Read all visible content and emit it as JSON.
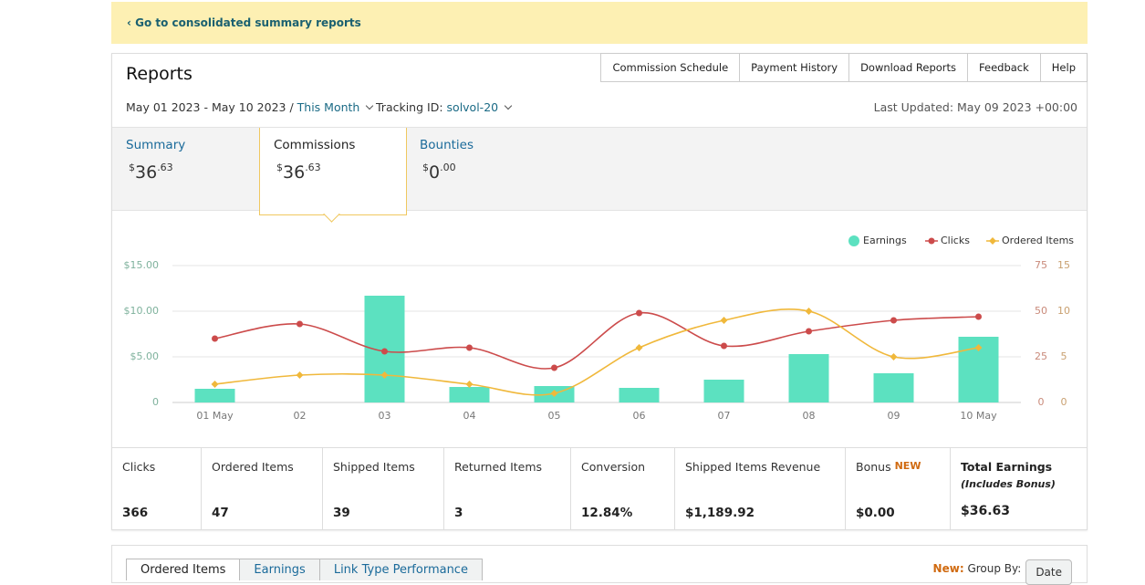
{
  "banner": {
    "link": "‹ Go to consolidated summary reports"
  },
  "header": {
    "title": "Reports",
    "nav": [
      "Commission Schedule",
      "Payment History",
      "Download Reports",
      "Feedback",
      "Help"
    ]
  },
  "filters": {
    "date_range": "May 01 2023 - May 10 2023 /",
    "period": "This Month",
    "tracking_label": "Tracking ID:",
    "tracking_id": "solvol-20",
    "last_updated": "Last Updated: May 09 2023 +00:00"
  },
  "summary_tabs": [
    {
      "label": "Summary",
      "currency": "$",
      "whole": "36",
      "fraction": ".63"
    },
    {
      "label": "Commissions",
      "currency": "$",
      "whole": "36",
      "fraction": ".63"
    },
    {
      "label": "Bounties",
      "currency": "$",
      "whole": "0",
      "fraction": ".00"
    }
  ],
  "chart_data": {
    "type": "combo",
    "categories": [
      "01 May",
      "02",
      "03",
      "04",
      "05",
      "06",
      "07",
      "08",
      "09",
      "10 May"
    ],
    "series": [
      {
        "name": "Earnings",
        "type": "bar",
        "axis": "y",
        "color": "#5ce1c0",
        "values": [
          1.5,
          0,
          11.7,
          1.7,
          1.8,
          1.6,
          2.5,
          5.3,
          3.2,
          7.2
        ]
      },
      {
        "name": "Clicks",
        "type": "line",
        "axis": "y2",
        "color": "#cc4b4b",
        "values": [
          35,
          43,
          28,
          30,
          19,
          49,
          31,
          39,
          45,
          47
        ]
      },
      {
        "name": "Ordered Items",
        "type": "line",
        "axis": "y3",
        "color": "#f0b83b",
        "values": [
          2,
          3,
          3,
          2,
          1,
          6,
          9,
          10,
          5,
          6
        ]
      }
    ],
    "ylim": [
      0,
      15
    ],
    "yticks": [
      0,
      {
        "value": 5,
        "label": "$5.00"
      },
      {
        "value": 10,
        "label": "$10.00"
      },
      {
        "value": 15,
        "label": "$15.00"
      }
    ],
    "y2lim": [
      0,
      75
    ],
    "y2ticks": [
      0,
      25,
      50,
      75
    ],
    "y3lim": [
      0,
      15
    ],
    "y3ticks": [
      0,
      5,
      10,
      15
    ],
    "grid": true,
    "legend": "top-right"
  },
  "stats": [
    {
      "label": "Clicks",
      "value": "366"
    },
    {
      "label": "Ordered Items",
      "value": "47"
    },
    {
      "label": "Shipped Items",
      "value": "39"
    },
    {
      "label": "Returned Items",
      "value": "3"
    },
    {
      "label": "Conversion",
      "value": "12.84%"
    },
    {
      "label": "Shipped Items Revenue",
      "value": "$1,189.92"
    },
    {
      "label": "Bonus",
      "badge": "NEW",
      "value": "$0.00"
    },
    {
      "label": "Total Earnings",
      "note": "(Includes Bonus)",
      "value": "$36.63"
    }
  ],
  "bottom": {
    "tabs": [
      "Ordered Items",
      "Earnings",
      "Link Type Performance"
    ],
    "new_label": "New:",
    "group_by": "Group By:",
    "select": "Date"
  }
}
